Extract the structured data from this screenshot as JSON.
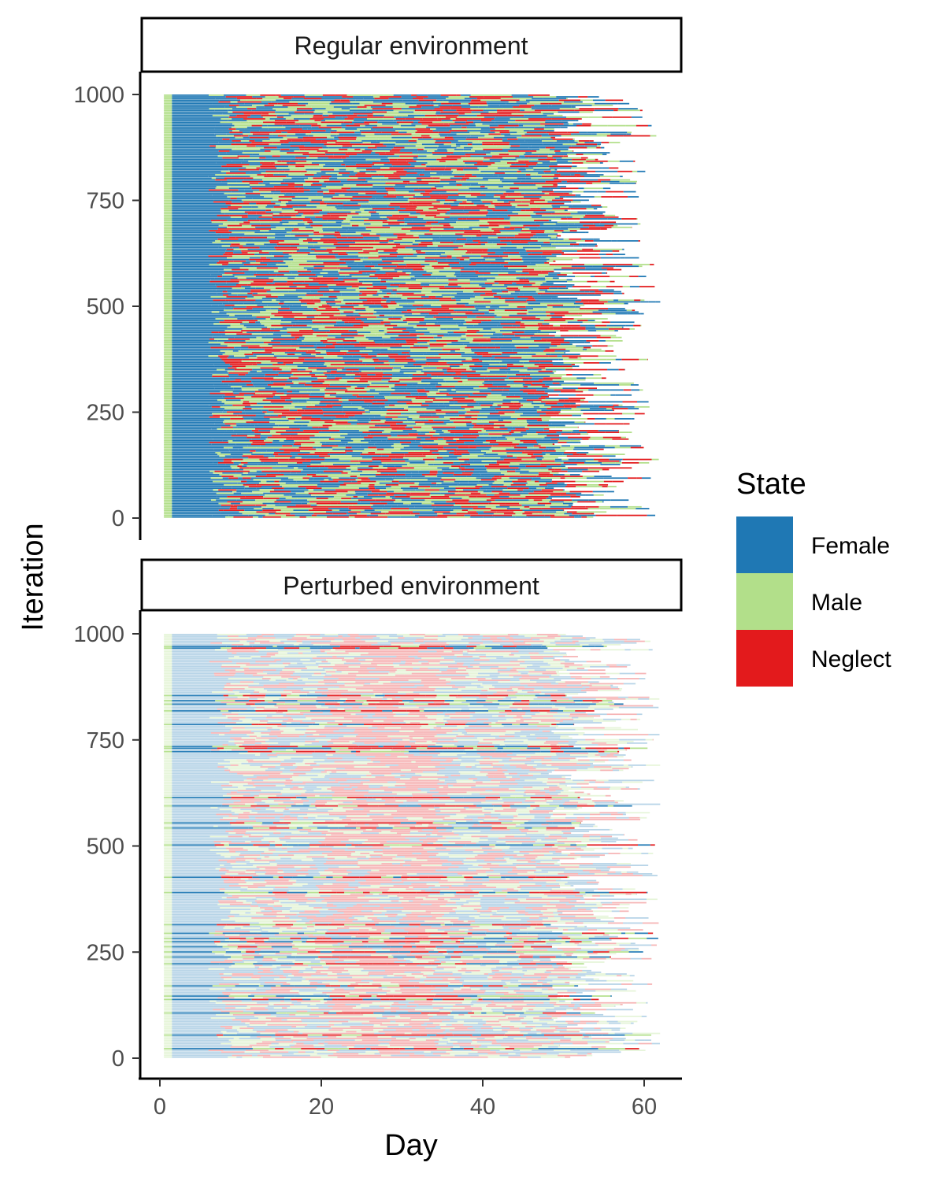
{
  "chart_data": {
    "type": "heatmap",
    "xlabel": "Day",
    "ylabel": "Iteration",
    "xlim": [
      0,
      62
    ],
    "ylim": [
      0,
      1000
    ],
    "x_ticks": [
      0,
      20,
      40,
      60
    ],
    "x_tick_labels": [
      "0",
      "20",
      "40",
      "60"
    ],
    "y_ticks": [
      0,
      250,
      500,
      750,
      1000
    ],
    "y_tick_labels": [
      "0",
      "250",
      "500",
      "750",
      "1000"
    ],
    "legend": {
      "title": "State",
      "position": "right",
      "items": [
        {
          "label": "Female",
          "color": "#1f78b4"
        },
        {
          "label": "Male",
          "color": "#b2df8a"
        },
        {
          "label": "Neglect",
          "color": "#e31a1c"
        }
      ]
    },
    "panels": [
      {
        "name": "Regular environment"
      },
      {
        "name": "Perturbed environment"
      }
    ]
  }
}
